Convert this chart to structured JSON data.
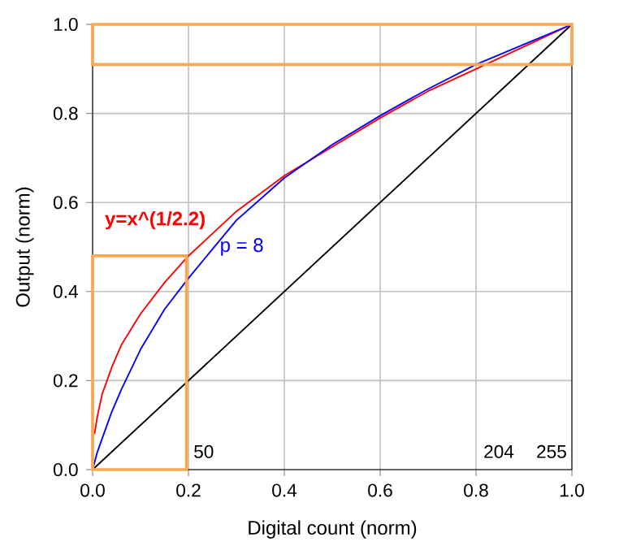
{
  "chart_data": {
    "type": "line",
    "xlabel": "Digital count (norm)",
    "ylabel": "Output (norm)",
    "xlim": [
      0,
      1
    ],
    "ylim": [
      0,
      1
    ],
    "xticks": [
      {
        "value": 0,
        "label": "0.0"
      },
      {
        "value": 0.2,
        "label": "0.2"
      },
      {
        "value": 0.4,
        "label": "0.4"
      },
      {
        "value": 0.6,
        "label": "0.6"
      },
      {
        "value": 0.8,
        "label": "0.8"
      },
      {
        "value": 1,
        "label": "1.0"
      }
    ],
    "yticks": [
      {
        "value": 0,
        "label": "0.0"
      },
      {
        "value": 0.2,
        "label": "0.2"
      },
      {
        "value": 0.4,
        "label": "0.4"
      },
      {
        "value": 0.6,
        "label": "0.6"
      },
      {
        "value": 0.8,
        "label": "0.8"
      },
      {
        "value": 1,
        "label": "1.0"
      }
    ],
    "grid": true,
    "marker": "none",
    "line_style": "solid",
    "series": [
      {
        "color": "#000000",
        "x": [
          0,
          1
        ],
        "values": [
          0,
          1
        ]
      },
      {
        "name": "y=x^(1/2.2)",
        "color": "#ff0000",
        "x": [
          0.004,
          0.01,
          0.02,
          0.04,
          0.06,
          0.1,
          0.15,
          0.2,
          0.3,
          0.4,
          0.5,
          0.6,
          0.7,
          0.8,
          0.9,
          1.0
        ],
        "values": [
          0.08,
          0.12,
          0.17,
          0.23,
          0.28,
          0.35,
          0.42,
          0.48,
          0.58,
          0.66,
          0.725,
          0.79,
          0.85,
          0.9,
          0.95,
          1.0
        ]
      },
      {
        "name": "p = 8",
        "color": "#0000ff",
        "x": [
          0,
          0.01,
          0.02,
          0.04,
          0.06,
          0.1,
          0.15,
          0.2,
          0.3,
          0.4,
          0.5,
          0.6,
          0.7,
          0.8,
          0.9,
          1.0
        ],
        "values": [
          0,
          0.04,
          0.07,
          0.13,
          0.18,
          0.27,
          0.36,
          0.43,
          0.56,
          0.655,
          0.73,
          0.795,
          0.855,
          0.91,
          0.955,
          1.0
        ]
      }
    ],
    "annotations": [
      "50",
      "204",
      "255"
    ]
  }
}
